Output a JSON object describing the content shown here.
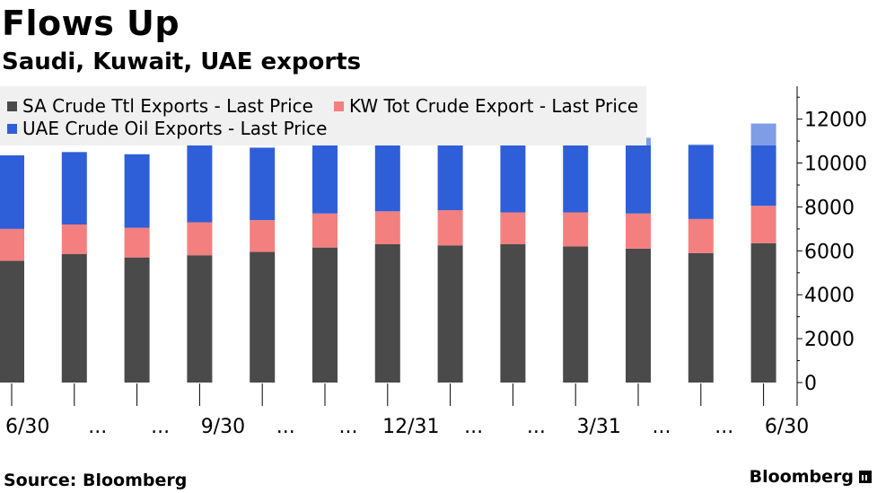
{
  "title": "Flows Up",
  "subtitle": "Saudi, Kuwait, UAE exports",
  "source": "Source: Bloomberg",
  "brand": "Bloomberg",
  "colors": {
    "sa": "#4a4a4a",
    "kw": "#f47f7f",
    "uae": "#2f5fd8",
    "uae_light": "#7f9de6"
  },
  "chart_data": {
    "type": "bar",
    "stacked": true,
    "categories": [
      "6/30",
      "...",
      "...",
      "9/30",
      "...",
      "...",
      "12/31",
      "...",
      "...",
      "3/31",
      "...",
      "...",
      "6/30"
    ],
    "series": [
      {
        "name": "SA Crude Ttl Exports - Last Price",
        "values": [
          5550,
          5850,
          5700,
          5800,
          5950,
          6150,
          6300,
          6250,
          6300,
          6200,
          6100,
          5900,
          6350
        ]
      },
      {
        "name": "KW Tot Crude Export - Last Price",
        "values": [
          1450,
          1350,
          1350,
          1500,
          1450,
          1550,
          1500,
          1600,
          1450,
          1550,
          1600,
          1550,
          1700
        ]
      },
      {
        "name": "UAE Crude Oil Exports - Last Price",
        "values": [
          3350,
          3300,
          3350,
          3500,
          3300,
          4750,
          3200,
          3300,
          3550,
          3550,
          3450,
          3400,
          3750
        ]
      }
    ],
    "ylim": [
      0,
      13500
    ],
    "yticks": [
      0,
      2000,
      4000,
      6000,
      8000,
      10000,
      12000
    ],
    "y_axis_side": "right",
    "legend": "top-left",
    "grid": false
  }
}
